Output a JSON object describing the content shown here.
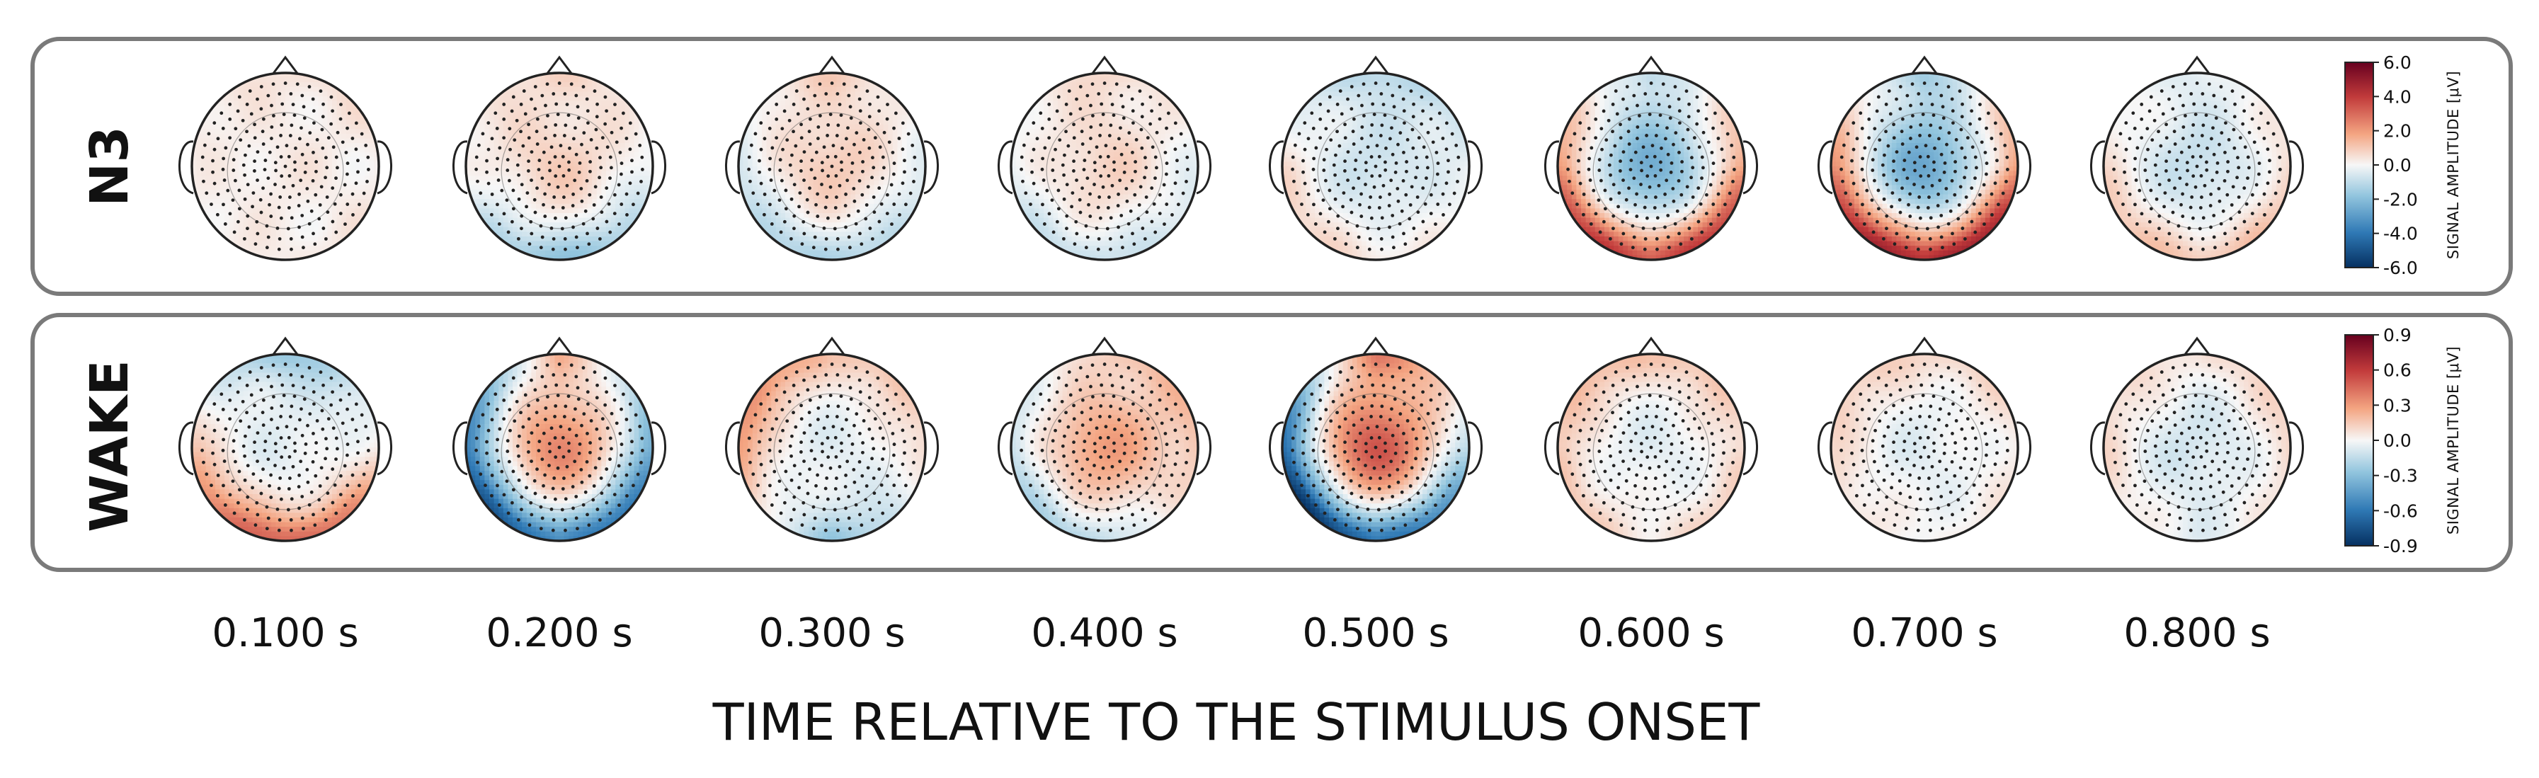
{
  "chart_data": {
    "type": "topographic-map-grid",
    "x_title": "TIME RELATIVE TO THE STIMULUS ONSET",
    "time_points": [
      "0.100 s",
      "0.200 s",
      "0.300 s",
      "0.400 s",
      "0.500 s",
      "0.600 s",
      "0.700 s",
      "0.800 s"
    ],
    "colors": {
      "negative": "#053061",
      "mid": "#f7f7f7",
      "positive": "#67001f",
      "frame": "#7a7a7a"
    },
    "panels": [
      {
        "name": "N3",
        "colorbar": {
          "label": "SIGNAL AMPLITUDE [μV]",
          "range": [
            -6.0,
            6.0
          ],
          "ticks": [
            "6.0",
            "4.0",
            "2.0",
            "0.0",
            "-2.0",
            "-4.0",
            "-6.0"
          ]
        },
        "maps": [
          {
            "time": "0.100 s",
            "center": 0.3,
            "front": 0.4,
            "back": 0.2,
            "left": 0.1,
            "right": 0.2
          },
          {
            "time": "0.200 s",
            "center": 0.9,
            "front": 0.6,
            "back": -1.8,
            "left": 0.0,
            "right": -0.2
          },
          {
            "time": "0.300 s",
            "center": 1.0,
            "front": 0.8,
            "back": -1.2,
            "left": -0.6,
            "right": -0.4
          },
          {
            "time": "0.400 s",
            "center": 0.8,
            "front": 0.6,
            "back": -0.8,
            "left": -0.3,
            "right": -0.3
          },
          {
            "time": "0.500 s",
            "center": -0.8,
            "front": -1.1,
            "back": 0.4,
            "left": 0.6,
            "right": -0.2
          },
          {
            "time": "0.600 s",
            "center": -2.4,
            "front": -1.0,
            "back": 3.6,
            "left": 2.2,
            "right": 2.0
          },
          {
            "time": "0.700 s",
            "center": -2.6,
            "front": -1.4,
            "back": 4.4,
            "left": 2.4,
            "right": 2.2
          },
          {
            "time": "0.800 s",
            "center": -0.9,
            "front": -0.4,
            "back": 1.0,
            "left": 0.6,
            "right": 0.6
          }
        ]
      },
      {
        "name": "WAKE",
        "colorbar": {
          "label": "SIGNAL AMPLITUDE [μV]",
          "range": [
            -0.9,
            0.9
          ],
          "ticks": [
            "0.9",
            "0.6",
            "0.3",
            "0.0",
            "-0.3",
            "-0.6",
            "-0.9"
          ]
        },
        "maps": [
          {
            "time": "0.100 s",
            "center": -0.05,
            "front": -0.25,
            "back": 0.45,
            "left": 0.15,
            "right": 0.05
          },
          {
            "time": "0.200 s",
            "center": 0.35,
            "front": 0.2,
            "back": -0.5,
            "left": -0.6,
            "right": -0.4
          },
          {
            "time": "0.300 s",
            "center": -0.05,
            "front": 0.15,
            "back": -0.25,
            "left": 0.3,
            "right": 0.1
          },
          {
            "time": "0.400 s",
            "center": 0.3,
            "front": 0.1,
            "back": -0.15,
            "left": -0.15,
            "right": 0.15
          },
          {
            "time": "0.500 s",
            "center": 0.5,
            "front": 0.35,
            "back": -0.6,
            "left": -0.7,
            "right": -0.2
          },
          {
            "time": "0.600 s",
            "center": -0.05,
            "front": 0.15,
            "back": 0.05,
            "left": 0.15,
            "right": 0.1
          },
          {
            "time": "0.700 s",
            "center": -0.05,
            "front": 0.1,
            "back": 0.0,
            "left": 0.1,
            "right": 0.05
          },
          {
            "time": "0.800 s",
            "center": -0.1,
            "front": 0.05,
            "back": -0.05,
            "left": 0.1,
            "right": 0.1
          }
        ]
      }
    ]
  }
}
